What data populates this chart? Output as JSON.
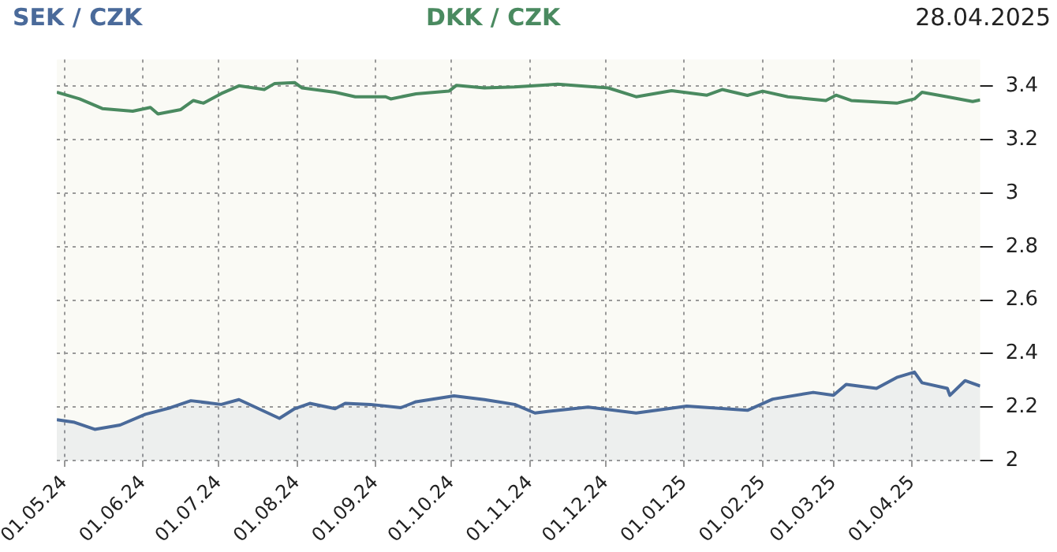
{
  "chart_data": {
    "type": "line",
    "xlim": [
      "2024-04-28",
      "2025-04-28"
    ],
    "xticks": [
      {
        "value": "2024-05-01",
        "label": "01.05.24"
      },
      {
        "value": "2024-06-01",
        "label": "01.06.24"
      },
      {
        "value": "2024-07-01",
        "label": "01.07.24"
      },
      {
        "value": "2024-08-01",
        "label": "01.08.24"
      },
      {
        "value": "2024-09-01",
        "label": "01.09.24"
      },
      {
        "value": "2024-10-01",
        "label": "01.10.24"
      },
      {
        "value": "2024-11-01",
        "label": "01.11.24"
      },
      {
        "value": "2024-12-01",
        "label": "01.12.24"
      },
      {
        "value": "2025-01-01",
        "label": "01.01.25"
      },
      {
        "value": "2025-02-01",
        "label": "01.02.25"
      },
      {
        "value": "2025-03-01",
        "label": "01.03.25"
      },
      {
        "value": "2025-04-01",
        "label": "01.04.25"
      }
    ],
    "ylim": [
      2,
      3.5
    ],
    "yticks": [
      2,
      2.2,
      2.4,
      2.6,
      2.8,
      3,
      3.2,
      3.4
    ],
    "grid": true,
    "legend": "top",
    "marker": "none",
    "line_style": "solid",
    "annotations": [
      "28.04.2025"
    ],
    "series": [
      {
        "name": "SEK / CZK",
        "type": "area",
        "color": "#4a6a9a",
        "x": [
          "2024-04-28",
          "2024-05-05",
          "2024-05-13",
          "2024-05-23",
          "2024-06-02",
          "2024-06-12",
          "2024-06-20",
          "2024-07-02",
          "2024-07-09",
          "2024-07-25",
          "2024-07-31",
          "2024-08-06",
          "2024-08-16",
          "2024-08-20",
          "2024-08-30",
          "2024-09-11",
          "2024-09-17",
          "2024-10-02",
          "2024-10-14",
          "2024-10-26",
          "2024-11-03",
          "2024-11-08",
          "2024-11-24",
          "2024-12-13",
          "2025-01-02",
          "2025-01-26",
          "2025-02-05",
          "2025-02-21",
          "2025-03-01",
          "2025-03-06",
          "2025-03-18",
          "2025-03-26",
          "2025-04-02",
          "2025-04-05",
          "2025-04-15",
          "2025-04-16",
          "2025-04-22",
          "2025-04-28"
        ],
        "values": [
          2.153,
          2.143,
          2.117,
          2.133,
          2.173,
          2.198,
          2.224,
          2.21,
          2.228,
          2.158,
          2.194,
          2.214,
          2.194,
          2.214,
          2.21,
          2.198,
          2.22,
          2.242,
          2.228,
          2.21,
          2.178,
          2.184,
          2.2,
          2.178,
          2.204,
          2.188,
          2.23,
          2.255,
          2.244,
          2.285,
          2.27,
          2.311,
          2.331,
          2.291,
          2.27,
          2.244,
          2.299,
          2.279
        ]
      },
      {
        "name": "DKK / CZK",
        "type": "line",
        "color": "#4a8a60",
        "x": [
          "2024-04-28",
          "2024-05-07",
          "2024-05-16",
          "2024-05-28",
          "2024-06-04",
          "2024-06-07",
          "2024-06-16",
          "2024-06-21",
          "2024-06-25",
          "2024-07-02",
          "2024-07-09",
          "2024-07-19",
          "2024-07-23",
          "2024-07-31",
          "2024-08-03",
          "2024-08-16",
          "2024-08-24",
          "2024-09-05",
          "2024-09-07",
          "2024-09-17",
          "2024-09-30",
          "2024-10-03",
          "2024-10-14",
          "2024-10-26",
          "2024-11-05",
          "2024-11-12",
          "2024-12-02",
          "2024-12-13",
          "2024-12-27",
          "2025-01-10",
          "2025-01-16",
          "2025-01-26",
          "2025-02-01",
          "2025-02-11",
          "2025-02-26",
          "2025-03-02",
          "2025-03-08",
          "2025-03-26",
          "2025-04-02",
          "2025-04-05",
          "2025-04-15",
          "2025-04-25",
          "2025-04-28"
        ],
        "values": [
          3.378,
          3.353,
          3.317,
          3.307,
          3.321,
          3.297,
          3.313,
          3.347,
          3.337,
          3.373,
          3.402,
          3.388,
          3.41,
          3.414,
          3.394,
          3.378,
          3.361,
          3.361,
          3.353,
          3.372,
          3.382,
          3.404,
          3.394,
          3.398,
          3.404,
          3.408,
          3.394,
          3.361,
          3.384,
          3.367,
          3.388,
          3.366,
          3.382,
          3.361,
          3.347,
          3.367,
          3.347,
          3.337,
          3.353,
          3.378,
          3.361,
          3.343,
          3.349
        ]
      }
    ]
  }
}
